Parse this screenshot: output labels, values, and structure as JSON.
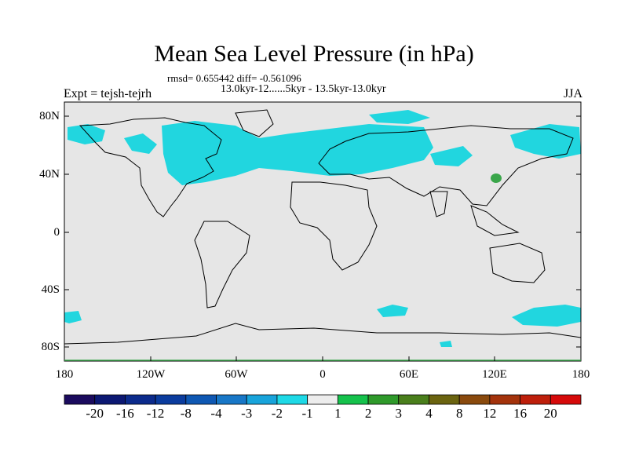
{
  "title": "Mean Sea Level Pressure (in hPa)",
  "stats_line": "rmsd= 0.655442 diff= -0.561096",
  "period_line": "13.0kyr-12......5kyr - 13.5kyr-13.0kyr",
  "experiment_label": "Expt = tejsh-tejrh",
  "season_label": "JJA",
  "axes": {
    "lat_labels": [
      "80N",
      "40N",
      "0",
      "40S",
      "80S"
    ],
    "lon_labels": [
      "180",
      "120W",
      "60W",
      "0",
      "60E",
      "120E",
      "180"
    ]
  },
  "colorbar": {
    "labels": [
      "-20",
      "-16",
      "-12",
      "-8",
      "-4",
      "-3",
      "-2",
      "-1",
      "1",
      "2",
      "3",
      "4",
      "8",
      "12",
      "16",
      "20"
    ],
    "colors": [
      "#1b0b5e",
      "#0c1873",
      "#0c2b8c",
      "#0b3c9e",
      "#0f58b3",
      "#1877c7",
      "#18a4db",
      "#1ed9e6",
      "#ededed",
      "#15c24c",
      "#2f9a2b",
      "#4a7f1c",
      "#6b6410",
      "#8a4a0d",
      "#a4330c",
      "#be1f0b",
      "#d60a0a"
    ]
  },
  "colors": {
    "land_background": "#e6e6e6",
    "negative_anomaly": "#21d6df",
    "positive_anomaly": "#3aa64a",
    "coastline": "#000000"
  }
}
